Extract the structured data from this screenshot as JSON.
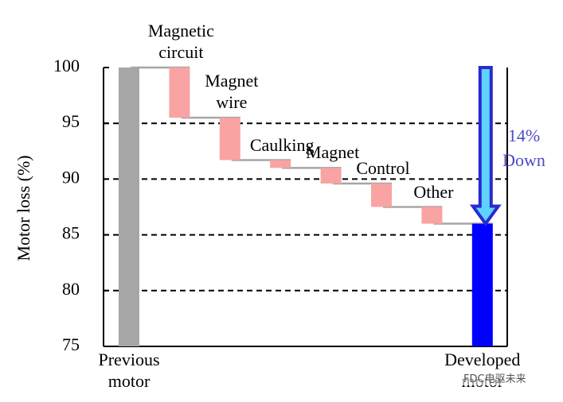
{
  "chart_data": {
    "type": "waterfall",
    "y_label": "Motor loss (%)",
    "categories": [
      "Previous motor",
      "Magnetic circuit",
      "Magnet wire",
      "Caulking",
      "Magnet",
      "Control",
      "Other",
      "Developed motor"
    ],
    "values": [
      100,
      -4.5,
      -3.8,
      -0.7,
      -1.4,
      -2.1,
      -1.5,
      86
    ],
    "is_total": [
      true,
      false,
      false,
      false,
      false,
      false,
      false,
      true
    ],
    "colors": {
      "previous": "#a6a6a6",
      "step": "#f9a3a3",
      "developed": "#0000ff",
      "connector": "#a6a6a6"
    },
    "ylim": [
      75,
      100
    ],
    "yticks": [
      75,
      80,
      85,
      90,
      95,
      100
    ],
    "grid": true,
    "annotation": {
      "text": "14% Down",
      "color": "#4a4ac8"
    },
    "watermark": "FDC电驱未来"
  }
}
